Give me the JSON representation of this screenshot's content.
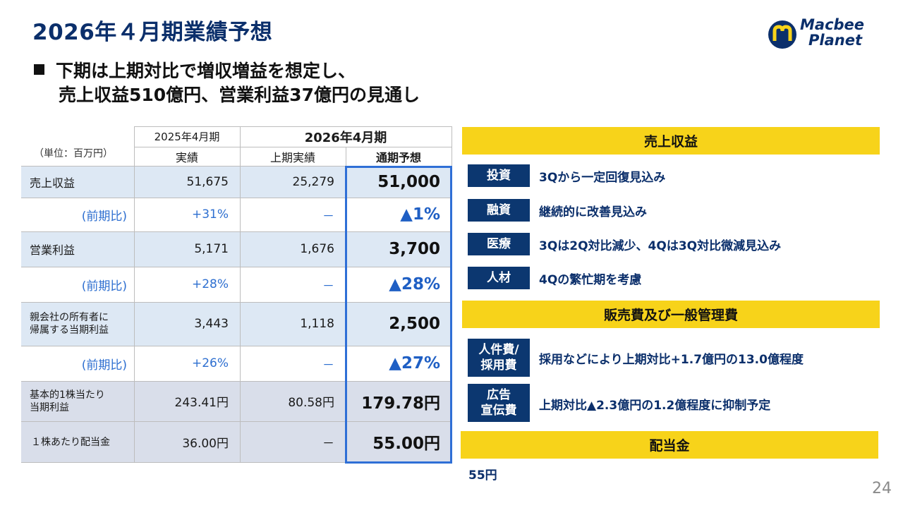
{
  "title": "2026年４月期業績予想",
  "subtitle": {
    "line1": "下期は上期対比で増収増益を想定し、",
    "line2": "売上収益510億円、営業利益37億円の見通し"
  },
  "logo": {
    "line1": "Macbee",
    "line2": "Planet"
  },
  "table": {
    "unit": "（単位：百万円）",
    "col_fy2025_top": "2025年4月期",
    "col_fy2025_sub": "実績",
    "col_fy2026_top": "2026年4月期",
    "col_h1": "上期実績",
    "col_full": "通期予想",
    "rows": [
      {
        "label": "売上収益",
        "fy2025": "51,675",
        "h1": "25,279",
        "forecast": "51,000"
      },
      {
        "label": "(前期比)",
        "fy2025": "+31%",
        "h1": "－",
        "forecast": "▲1%"
      },
      {
        "label": "営業利益",
        "fy2025": "5,171",
        "h1": "1,676",
        "forecast": "3,700"
      },
      {
        "label": "(前期比)",
        "fy2025": "+28%",
        "h1": "－",
        "forecast": "▲28%"
      },
      {
        "label_l1": "親会社の所有者に",
        "label_l2": "帰属する当期利益",
        "fy2025": "3,443",
        "h1": "1,118",
        "forecast": "2,500"
      },
      {
        "label": "(前期比)",
        "fy2025": "+26%",
        "h1": "－",
        "forecast": "▲27%"
      },
      {
        "label_l1": "基本的1株当たり",
        "label_l2": "当期利益",
        "fy2025": "243.41円",
        "h1": "80.58円",
        "forecast": "179.78円"
      },
      {
        "label": "１株あたり配当金",
        "fy2025": "36.00円",
        "h1": "－",
        "forecast": "55.00円"
      }
    ]
  },
  "revenue": {
    "header": "売上収益",
    "items": [
      {
        "tag": "投資",
        "desc": "3Qから一定回復見込み"
      },
      {
        "tag": "融資",
        "desc": "継続的に改善見込み"
      },
      {
        "tag": "医療",
        "desc": "3Qは2Q対比減少、4Qは3Q対比微減見込み"
      },
      {
        "tag": "人材",
        "desc": "4Qの繁忙期を考慮"
      }
    ]
  },
  "sga": {
    "header": "販売費及び一般管理費",
    "items": [
      {
        "tag_l1": "人件費/",
        "tag_l2": "採用費",
        "desc": "採用などにより上期対比+1.7億円の13.0億程度"
      },
      {
        "tag_l1": "広告",
        "tag_l2": "宣伝費",
        "desc": "上期対比▲2.3億円の1.2億程度に抑制予定"
      }
    ]
  },
  "dividend": {
    "header": "配当金",
    "value": "55円"
  },
  "page_number": "24",
  "colors": {
    "navy": "#0c3770",
    "yellow": "#f7d31a",
    "blue_text": "#2e6fd0",
    "highlight": "#2f6fd6"
  }
}
